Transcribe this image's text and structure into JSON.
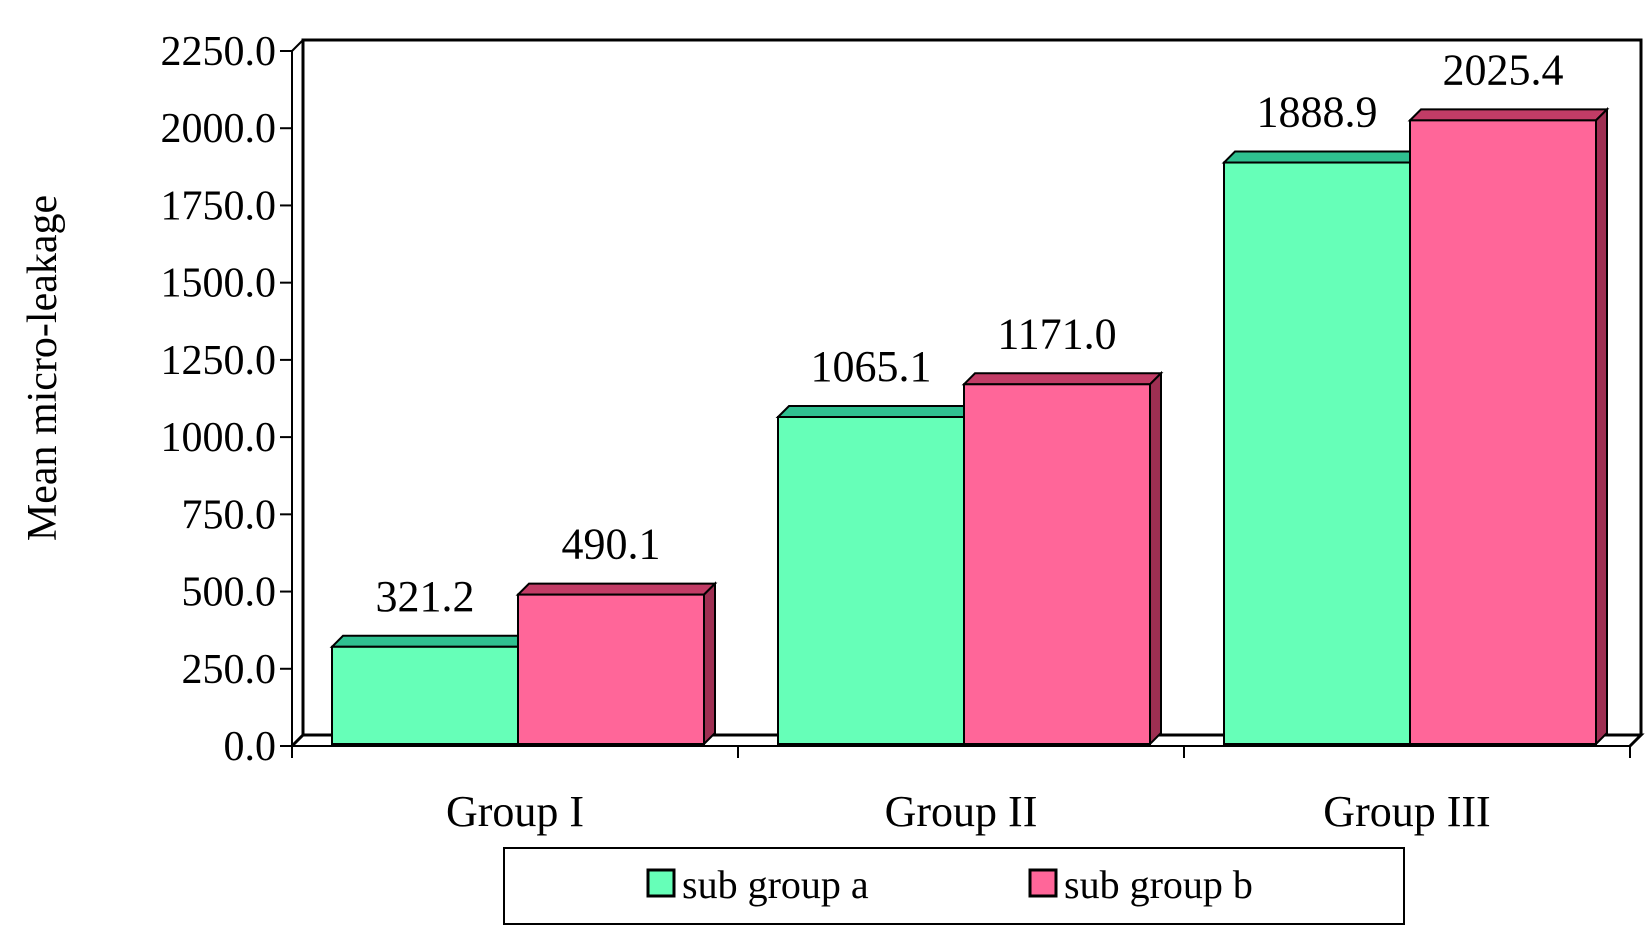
{
  "chart_data": {
    "type": "bar",
    "title": "",
    "xlabel": "",
    "ylabel": "Mean micro-leakage",
    "ylim": [
      0,
      2250
    ],
    "yticks": [
      "0.0",
      "250.0",
      "500.0",
      "750.0",
      "1000.0",
      "1250.0",
      "1500.0",
      "1750.0",
      "2000.0",
      "2250.0"
    ],
    "categories": [
      "Group I",
      "Group II",
      "Group III"
    ],
    "series": [
      {
        "name": "sub group a",
        "values": [
          321.2,
          1065.1,
          1888.9
        ],
        "labels": [
          "321.2",
          "1065.1",
          "1888.9"
        ],
        "color": "#66FFB8",
        "top_color": "#2FC090",
        "side_color": "#2A9A72"
      },
      {
        "name": "sub group b",
        "values": [
          490.1,
          1171.0,
          2025.4
        ],
        "labels": [
          "490.1",
          "1171.0",
          "2025.4"
        ],
        "color": "#FF6699",
        "top_color": "#C23C66",
        "side_color": "#9E2F52"
      }
    ],
    "grid": false,
    "three_d": true,
    "legend_position": "bottom"
  }
}
